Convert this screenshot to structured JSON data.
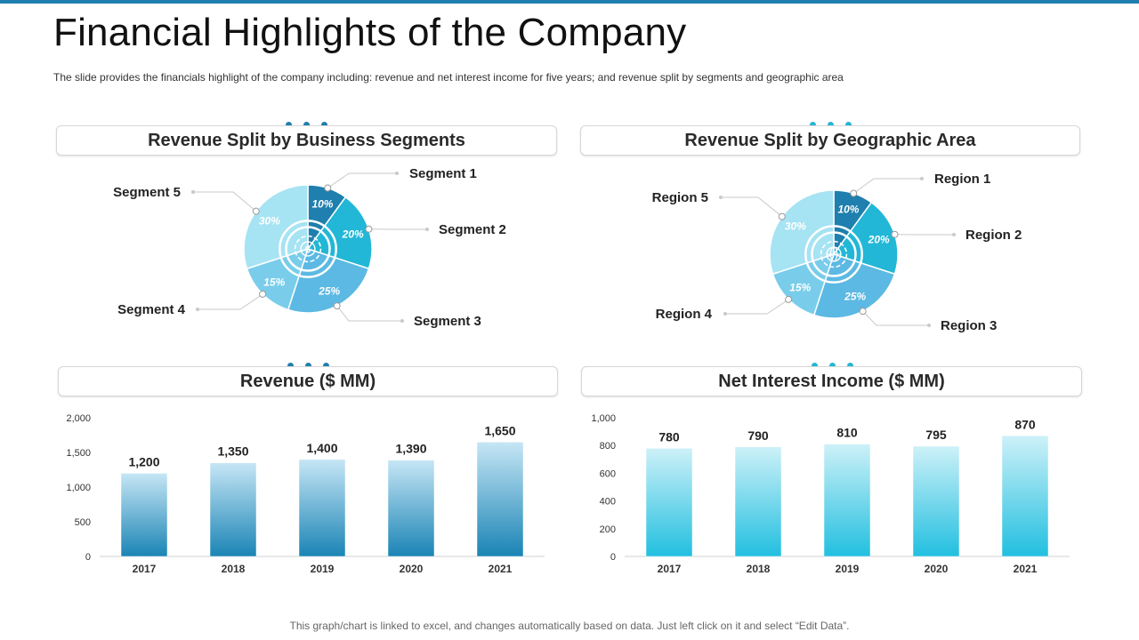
{
  "title": "Financial Highlights of the Company",
  "subtitle": "The slide provides  the financials highlight of the company including:  revenue  and net interest income for five  years;  and revenue  split by segments and geographic  area",
  "footer": "This graph/chart is linked to excel, and changes automatically based on data. Just left click on it and select “Edit Data”.",
  "colors": {
    "accent_dark": "#1f7fae",
    "accent_light": "#22b7d6",
    "pie": [
      "#1f7fae",
      "#22b7d6",
      "#5cb9e3",
      "#79cdea",
      "#a6e3f3"
    ]
  },
  "chart_data": [
    {
      "type": "pie",
      "title": "Revenue Split by Business Segments",
      "center_icon": "dollar-coin-icon",
      "slices": [
        {
          "label": "Segment 1",
          "value": 10,
          "display": "10%"
        },
        {
          "label": "Segment 2",
          "value": 20,
          "display": "20%"
        },
        {
          "label": "Segment 3",
          "value": 25,
          "display": "25%"
        },
        {
          "label": "Segment 4",
          "value": 15,
          "display": "15%"
        },
        {
          "label": "Segment 5",
          "value": 30,
          "display": "30%"
        }
      ]
    },
    {
      "type": "pie",
      "title": "Revenue Split by Geographic Area",
      "center_icon": "globe-icon",
      "slices": [
        {
          "label": "Region 1",
          "value": 10,
          "display": "10%"
        },
        {
          "label": "Region 2",
          "value": 20,
          "display": "20%"
        },
        {
          "label": "Region 3",
          "value": 25,
          "display": "25%"
        },
        {
          "label": "Region 4",
          "value": 15,
          "display": "15%"
        },
        {
          "label": "Region 5",
          "value": 30,
          "display": "30%"
        }
      ]
    },
    {
      "type": "bar",
      "title": "Revenue ($ MM)",
      "categories": [
        "2017",
        "2018",
        "2019",
        "2020",
        "2021"
      ],
      "values": [
        1200,
        1350,
        1400,
        1390,
        1650
      ],
      "value_labels": [
        "1,200",
        "1,350",
        "1,400",
        "1,390",
        "1,650"
      ],
      "ylim": [
        0,
        2000
      ],
      "yticks": [
        0,
        500,
        1000,
        1500,
        2000
      ],
      "ytick_labels": [
        "0",
        "500",
        "1,000",
        "1,500",
        "2,000"
      ],
      "gradient": [
        "#c6e6f5",
        "#1a84b5"
      ]
    },
    {
      "type": "bar",
      "title": "Net Interest Income ($ MM)",
      "categories": [
        "2017",
        "2018",
        "2019",
        "2020",
        "2021"
      ],
      "values": [
        780,
        790,
        810,
        795,
        870
      ],
      "value_labels": [
        "780",
        "790",
        "810",
        "795",
        "870"
      ],
      "ylim": [
        0,
        1000
      ],
      "yticks": [
        0,
        200,
        400,
        600,
        800,
        1000
      ],
      "ytick_labels": [
        "0",
        "200",
        "400",
        "600",
        "800",
        "1,000"
      ],
      "gradient": [
        "#cdf1f8",
        "#22bfe0"
      ]
    }
  ]
}
